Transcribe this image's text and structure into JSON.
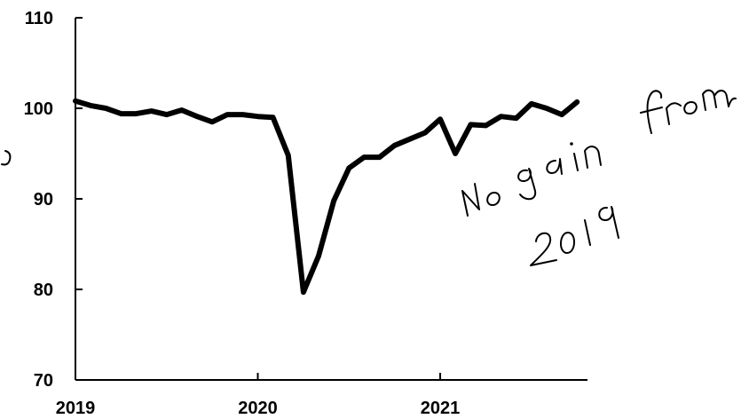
{
  "chart_data": {
    "type": "line",
    "title": "",
    "xlabel": "",
    "ylabel": "",
    "xlim": [
      2019.0,
      2021.9
    ],
    "ylim": [
      70,
      110
    ],
    "y_ticks": [
      70,
      80,
      90,
      100,
      110
    ],
    "x_ticks": [
      {
        "value": 2019,
        "label": "2019"
      },
      {
        "value": 2020,
        "label": "2020"
      },
      {
        "value": 2021,
        "label": "2021"
      }
    ],
    "grid": false,
    "legend": "none",
    "series": [
      {
        "color": "#000000",
        "x": [
          2019.0,
          2019.083,
          2019.167,
          2019.25,
          2019.333,
          2019.417,
          2019.5,
          2019.583,
          2019.667,
          2019.75,
          2019.833,
          2019.917,
          2020.0,
          2020.083,
          2020.167,
          2020.25,
          2020.333,
          2020.417,
          2020.5,
          2020.583,
          2020.667,
          2020.75,
          2020.833,
          2020.917,
          2021.0,
          2021.083,
          2021.167,
          2021.25,
          2021.333,
          2021.417,
          2021.5,
          2021.583,
          2021.667,
          2021.75
        ],
        "y": [
          100.8,
          100.3,
          100.0,
          99.4,
          99.4,
          99.7,
          99.3,
          99.8,
          99.1,
          98.5,
          99.3,
          99.3,
          99.1,
          99.0,
          94.8,
          79.7,
          83.7,
          89.8,
          93.4,
          94.6,
          94.6,
          95.9,
          96.6,
          97.3,
          98.8,
          95.0,
          98.2,
          98.1,
          99.1,
          98.9,
          100.5,
          100.0,
          99.3,
          100.7
        ]
      }
    ],
    "annotations": [
      {
        "text": "No gain from 2019",
        "style": "handwritten",
        "placement": "right"
      }
    ]
  }
}
